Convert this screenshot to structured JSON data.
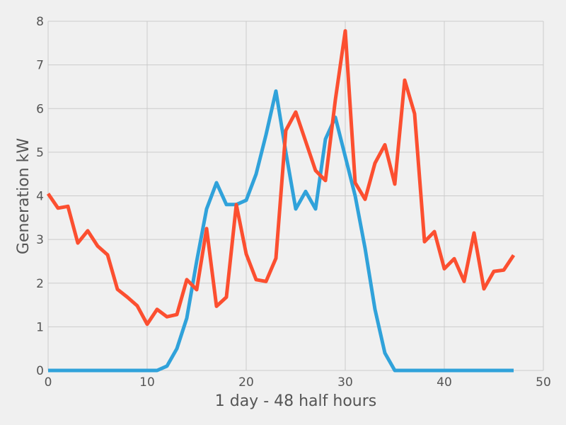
{
  "chart_data": {
    "type": "line",
    "xlabel": "1 day - 48 half hours",
    "ylabel": "Generation kW",
    "xlim": [
      0,
      50
    ],
    "ylim": [
      0,
      8
    ],
    "xticks": [
      0,
      10,
      20,
      30,
      40,
      50
    ],
    "yticks": [
      0,
      1,
      2,
      3,
      4,
      5,
      6,
      7,
      8
    ],
    "grid": true,
    "series": [
      {
        "color": "#30a2da",
        "x": [
          0,
          1,
          2,
          3,
          4,
          5,
          6,
          7,
          8,
          9,
          10,
          11,
          12,
          13,
          14,
          15,
          16,
          17,
          18,
          19,
          20,
          21,
          22,
          23,
          24,
          25,
          26,
          27,
          28,
          29,
          30,
          31,
          32,
          33,
          34,
          35,
          36,
          37,
          38,
          39,
          40,
          41,
          42,
          43,
          44,
          45,
          46,
          47
        ],
        "values": [
          0,
          0,
          0,
          0,
          0,
          0,
          0,
          0,
          0,
          0,
          0,
          0,
          0.1,
          0.5,
          1.2,
          2.5,
          3.7,
          4.3,
          3.8,
          3.8,
          3.9,
          4.5,
          5.4,
          6.4,
          5.0,
          3.7,
          4.1,
          3.7,
          5.3,
          5.8,
          4.9,
          4.0,
          2.8,
          1.4,
          0.4,
          0,
          0,
          0,
          0,
          0,
          0,
          0,
          0,
          0,
          0,
          0,
          0,
          0
        ]
      },
      {
        "color": "#fc4f30",
        "x": [
          0,
          1,
          2,
          3,
          4,
          5,
          6,
          7,
          8,
          9,
          10,
          11,
          12,
          13,
          14,
          15,
          16,
          17,
          18,
          19,
          20,
          21,
          22,
          23,
          24,
          25,
          26,
          27,
          28,
          29,
          30,
          31,
          32,
          33,
          34,
          35,
          36,
          37,
          38,
          39,
          40,
          41,
          42,
          43,
          44,
          45,
          46,
          47
        ],
        "values": [
          4.05,
          3.72,
          3.76,
          2.92,
          3.2,
          2.85,
          2.65,
          1.86,
          1.68,
          1.48,
          1.06,
          1.4,
          1.23,
          1.28,
          2.08,
          1.85,
          3.25,
          1.47,
          1.68,
          3.8,
          2.67,
          2.08,
          2.04,
          2.57,
          5.5,
          5.92,
          5.25,
          4.58,
          4.35,
          6.2,
          7.78,
          4.3,
          3.92,
          4.75,
          5.17,
          4.27,
          6.65,
          5.88,
          2.95,
          3.18,
          2.33,
          2.56,
          2.04,
          3.15,
          1.87,
          2.27,
          2.3,
          2.64
        ]
      }
    ]
  }
}
